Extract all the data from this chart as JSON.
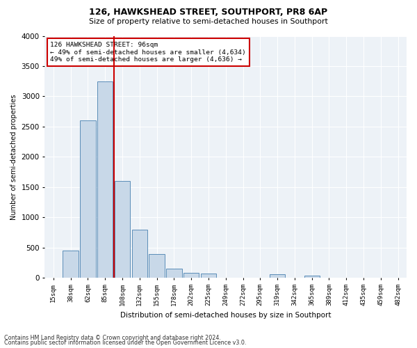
{
  "title1": "126, HAWKSHEAD STREET, SOUTHPORT, PR8 6AP",
  "title2": "Size of property relative to semi-detached houses in Southport",
  "xlabel": "Distribution of semi-detached houses by size in Southport",
  "ylabel": "Number of semi-detached properties",
  "footer1": "Contains HM Land Registry data © Crown copyright and database right 2024.",
  "footer2": "Contains public sector information licensed under the Open Government Licence v3.0.",
  "annotation_title": "126 HAWKSHEAD STREET: 96sqm",
  "annotation_line1": "← 49% of semi-detached houses are smaller (4,634)",
  "annotation_line2": "49% of semi-detached houses are larger (4,636) →",
  "property_size_sqm": 96,
  "bar_color": "#c8d8e8",
  "bar_edge_color": "#5b8db8",
  "redline_color": "#cc0000",
  "annotation_box_color": "#cc0000",
  "background_color": "#edf2f7",
  "categories": [
    "15sqm",
    "38sqm",
    "62sqm",
    "85sqm",
    "108sqm",
    "132sqm",
    "155sqm",
    "178sqm",
    "202sqm",
    "225sqm",
    "249sqm",
    "272sqm",
    "295sqm",
    "319sqm",
    "342sqm",
    "365sqm",
    "389sqm",
    "412sqm",
    "435sqm",
    "459sqm",
    "482sqm"
  ],
  "bar_heights": [
    5,
    450,
    2600,
    3250,
    1600,
    800,
    390,
    150,
    80,
    75,
    0,
    0,
    0,
    55,
    0,
    35,
    0,
    0,
    0,
    0,
    0
  ],
  "red_line_x": 3.5,
  "ylim": [
    0,
    4000
  ],
  "yticks": [
    0,
    500,
    1000,
    1500,
    2000,
    2500,
    3000,
    3500,
    4000
  ]
}
